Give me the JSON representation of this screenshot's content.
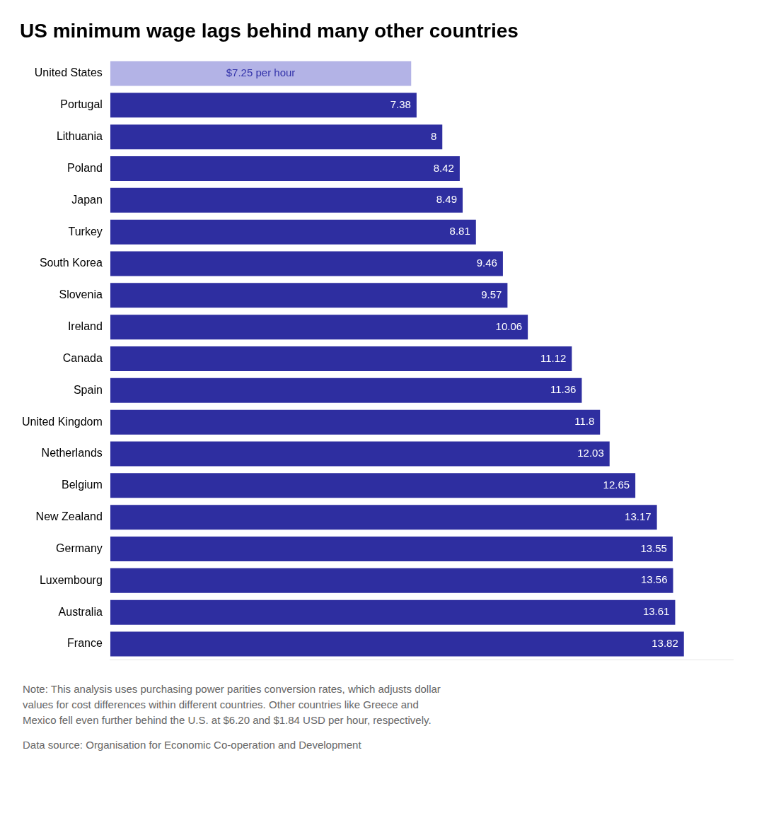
{
  "chart_data": {
    "type": "bar",
    "orientation": "horizontal",
    "title": "US minimum wage lags behind many other countries",
    "categories": [
      "United States",
      "Portugal",
      "Lithuania",
      "Poland",
      "Japan",
      "Turkey",
      "South Korea",
      "Slovenia",
      "Ireland",
      "Canada",
      "Spain",
      "United Kingdom",
      "Netherlands",
      "Belgium",
      "New Zealand",
      "Germany",
      "Luxembourg",
      "Australia",
      "France"
    ],
    "values": [
      7.25,
      7.38,
      8.0,
      8.42,
      8.49,
      8.81,
      9.46,
      9.57,
      10.06,
      11.12,
      11.36,
      11.8,
      12.03,
      12.65,
      13.17,
      13.55,
      13.56,
      13.61,
      13.82
    ],
    "value_labels": [
      "$7.25 per hour",
      "7.38",
      "8",
      "8.42",
      "8.49",
      "8.81",
      "9.46",
      "9.57",
      "10.06",
      "11.12",
      "11.36",
      "11.8",
      "12.03",
      "12.65",
      "13.17",
      "13.55",
      "13.56",
      "13.61",
      "13.82"
    ],
    "colors": [
      "#b3b3e6",
      "#2e2ea0",
      "#2e2ea0",
      "#2e2ea0",
      "#2e2ea0",
      "#2e2ea0",
      "#2e2ea0",
      "#2e2ea0",
      "#2e2ea0",
      "#2e2ea0",
      "#2e2ea0",
      "#2e2ea0",
      "#2e2ea0",
      "#2e2ea0",
      "#2e2ea0",
      "#2e2ea0",
      "#2e2ea0",
      "#2e2ea0",
      "#2e2ea0"
    ],
    "xlim": [
      0,
      15.0
    ],
    "data_labels": true,
    "tick_labels": "y",
    "grid": false,
    "annotations": [
      "Note: This analysis uses purchasing power parities conversion rates, which adjusts dollar\nvalues for cost differences within different countries. Other countries like Greece and\nMexico fell even further behind the U.S. at $6.20 and $1.84 USD per hour, respectively.",
      "Data source: Organisation for Economic Co-operation and Development"
    ]
  }
}
